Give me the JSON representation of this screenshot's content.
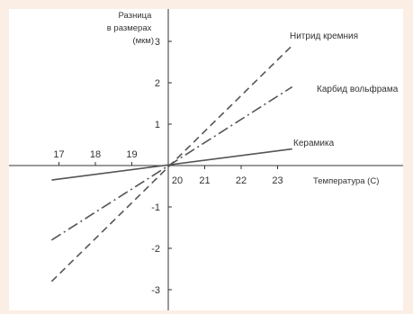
{
  "chart_data": {
    "type": "line",
    "title": "",
    "xlabel": "Температура (С)",
    "ylabel_lines": [
      "Разница",
      "в размерах",
      "(мкм)"
    ],
    "xlim": [
      16.5,
      23.7
    ],
    "ylim": [
      -3.4,
      3.4
    ],
    "x_ticks": [
      17,
      18,
      19,
      20,
      21,
      22,
      23
    ],
    "y_ticks": [
      -3,
      -2,
      -1,
      1,
      2,
      3
    ],
    "grid": false,
    "legend": "none",
    "series": [
      {
        "name": "Нитрид кремния",
        "style": "dashed",
        "color": "#555555",
        "x": [
          16.8,
          23.4
        ],
        "y": [
          -2.8,
          2.9
        ]
      },
      {
        "name": "Карбид вольфрама",
        "style": "dashdot",
        "color": "#555555",
        "x": [
          16.8,
          23.4
        ],
        "y": [
          -1.8,
          1.9
        ]
      },
      {
        "name": "Керамика",
        "style": "solid",
        "color": "#555555",
        "x": [
          16.8,
          23.4
        ],
        "y": [
          -0.35,
          0.4
        ]
      }
    ]
  }
}
